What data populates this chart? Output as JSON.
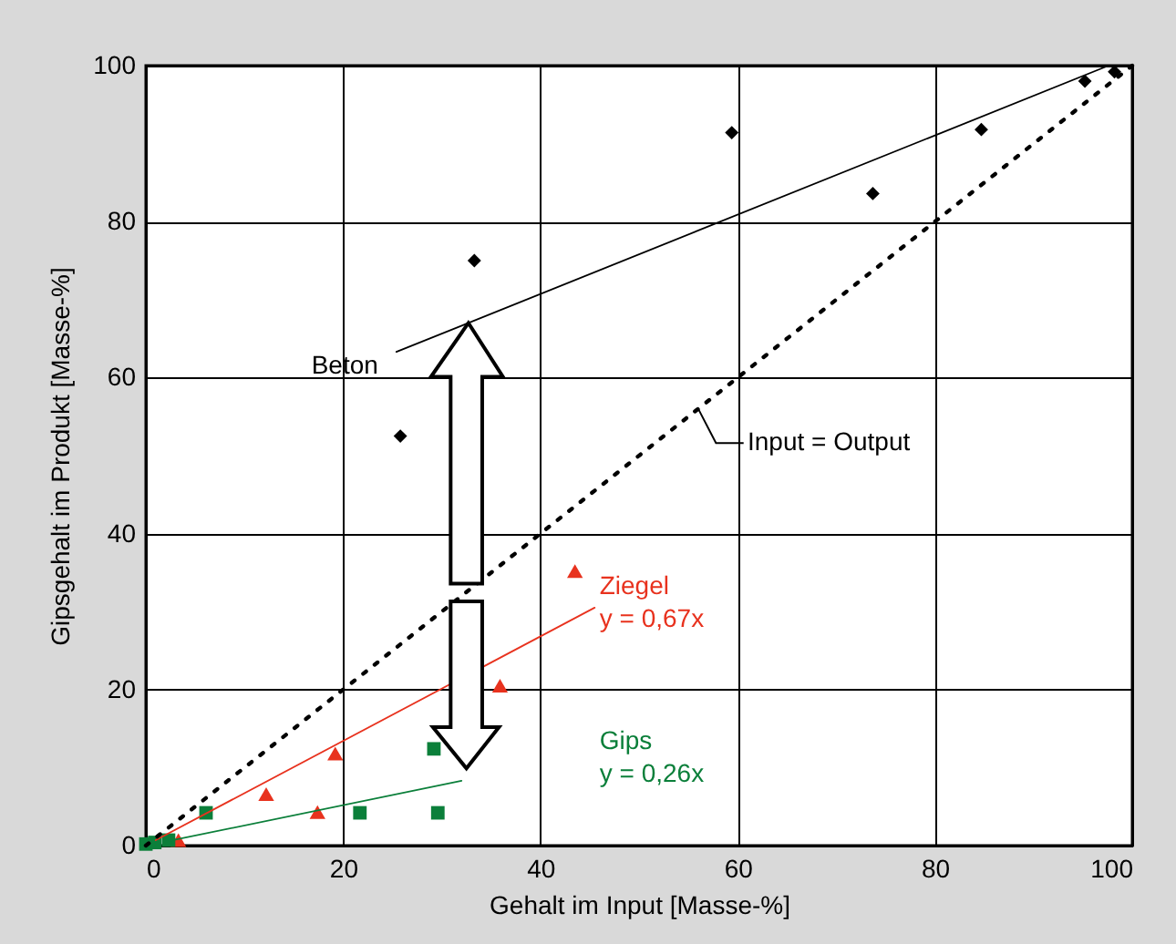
{
  "chart_data": {
    "type": "scatter",
    "xlabel": "Gehalt im Input [Masse-%]",
    "ylabel": "Gipsgehalt im Produkt [Masse-%]",
    "xlim": [
      0,
      100
    ],
    "ylim": [
      0,
      100
    ],
    "xticks": [
      0,
      20,
      40,
      60,
      80,
      100
    ],
    "yticks": [
      0,
      20,
      40,
      60,
      80,
      100
    ],
    "grid": true,
    "series": [
      {
        "marker": "diamond",
        "color": "#000000",
        "x": [
          25.8,
          33.3,
          59.4,
          73.7,
          84.7,
          95.2,
          98.2
        ],
        "values": [
          52.5,
          75.0,
          91.4,
          83.6,
          91.8,
          98.0,
          99.2
        ]
      },
      {
        "marker": "triangle",
        "color": "#e8321e",
        "x": [
          3.3,
          12.2,
          17.4,
          19.2,
          35.9,
          43.5
        ],
        "values": [
          0.7,
          6.6,
          4.3,
          11.8,
          20.5,
          35.2
        ]
      },
      {
        "marker": "square",
        "color": "#0b7f3a",
        "x": [
          0,
          0.9,
          2.3,
          6.1,
          21.7,
          29.2,
          29.6
        ],
        "values": [
          0.2,
          0.4,
          0.7,
          4.2,
          4.2,
          12.4,
          4.2
        ]
      },
      {
        "type": "line",
        "name": "Beton",
        "color": "#000000",
        "x": [
          25.4,
          97.6
        ],
        "values": [
          63.3,
          100
        ]
      },
      {
        "type": "line",
        "name": "Ziegel",
        "color": "#e8321e",
        "x": [
          1,
          45.5
        ],
        "values": [
          0.7,
          30.5
        ]
      },
      {
        "type": "line",
        "name": "Gips",
        "color": "#0b7f3a",
        "x": [
          2,
          32
        ],
        "values": [
          0.5,
          8.3
        ]
      },
      {
        "type": "line",
        "line_style": "dotted",
        "color": "#000000",
        "x": [
          0,
          100
        ],
        "values": [
          0,
          100
        ]
      }
    ],
    "annotations": [
      "y = 0,67x",
      "y = 0,26x",
      "Input  = Output"
    ]
  }
}
